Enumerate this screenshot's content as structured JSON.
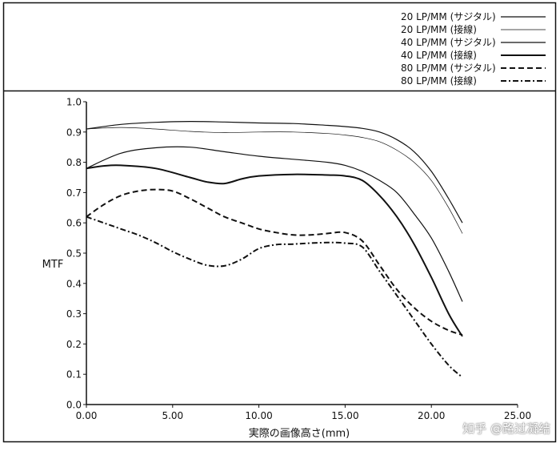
{
  "chart_data": {
    "type": "line",
    "title": "",
    "xlabel": "実際の画像高さ(mm)",
    "ylabel": "MTF",
    "xlim": [
      0,
      25
    ],
    "ylim": [
      0,
      1.0
    ],
    "x_ticks": [
      "0.00",
      "5.00",
      "10.00",
      "15.00",
      "20.00",
      "25.00"
    ],
    "y_ticks": [
      "0.0",
      "0.1",
      "0.2",
      "0.3",
      "0.4",
      "0.5",
      "0.6",
      "0.7",
      "0.8",
      "0.9",
      "1.0"
    ],
    "grid": false,
    "legend_position": "top-right",
    "series": [
      {
        "name": "20 LP/MM (サジタル)",
        "style": "solid-thin",
        "x": [
          0,
          2,
          4,
          6,
          8,
          10,
          12,
          14,
          15,
          16,
          17,
          18,
          19,
          20,
          21,
          21.8
        ],
        "y": [
          0.91,
          0.925,
          0.932,
          0.935,
          0.933,
          0.93,
          0.928,
          0.922,
          0.918,
          0.912,
          0.9,
          0.875,
          0.835,
          0.77,
          0.68,
          0.6
        ]
      },
      {
        "name": "20 LP/MM (接線)",
        "style": "solid-hair",
        "x": [
          0,
          2,
          4,
          6,
          8,
          10,
          12,
          14,
          15,
          16,
          17,
          18,
          19,
          20,
          21,
          21.8
        ],
        "y": [
          0.91,
          0.915,
          0.91,
          0.902,
          0.898,
          0.9,
          0.9,
          0.895,
          0.89,
          0.882,
          0.868,
          0.84,
          0.8,
          0.74,
          0.65,
          0.565
        ]
      },
      {
        "name": "40 LP/MM (サジタル)",
        "style": "solid-thin",
        "x": [
          0,
          2,
          4,
          6,
          8,
          10,
          12,
          14,
          15,
          16,
          17,
          18,
          19,
          20,
          21,
          21.8
        ],
        "y": [
          0.78,
          0.83,
          0.848,
          0.85,
          0.835,
          0.82,
          0.81,
          0.8,
          0.79,
          0.77,
          0.74,
          0.7,
          0.63,
          0.55,
          0.44,
          0.34
        ]
      },
      {
        "name": "40 LP/MM (接線)",
        "style": "solid-thick",
        "x": [
          0,
          1,
          2,
          4,
          6,
          7,
          8,
          9,
          10,
          12,
          14,
          15,
          16,
          17,
          18,
          19,
          20,
          21,
          21.8
        ],
        "y": [
          0.78,
          0.788,
          0.79,
          0.78,
          0.75,
          0.735,
          0.73,
          0.745,
          0.755,
          0.76,
          0.758,
          0.755,
          0.74,
          0.69,
          0.62,
          0.53,
          0.42,
          0.3,
          0.225
        ]
      },
      {
        "name": "80 LP/MM (サジタル)",
        "style": "dashed",
        "x": [
          0,
          1,
          2,
          3,
          4,
          5,
          6,
          7,
          8,
          9,
          10,
          11,
          12,
          13,
          14,
          15,
          16,
          17,
          18,
          19,
          20,
          21,
          21.8
        ],
        "y": [
          0.62,
          0.66,
          0.69,
          0.705,
          0.71,
          0.705,
          0.68,
          0.65,
          0.62,
          0.6,
          0.58,
          0.568,
          0.56,
          0.56,
          0.565,
          0.568,
          0.54,
          0.46,
          0.38,
          0.32,
          0.275,
          0.245,
          0.23
        ]
      },
      {
        "name": "80 LP/MM (接線)",
        "style": "dashdot",
        "x": [
          0,
          1,
          2,
          3,
          4,
          5,
          6,
          7,
          8,
          9,
          10,
          11,
          12,
          13,
          14,
          15,
          16,
          17,
          18,
          19,
          20,
          21,
          21.8
        ],
        "y": [
          0.62,
          0.6,
          0.58,
          0.56,
          0.535,
          0.505,
          0.48,
          0.46,
          0.458,
          0.48,
          0.515,
          0.528,
          0.53,
          0.533,
          0.535,
          0.533,
          0.52,
          0.44,
          0.36,
          0.28,
          0.2,
          0.13,
          0.09
        ]
      }
    ]
  },
  "watermark": "知乎 @路过凝结"
}
